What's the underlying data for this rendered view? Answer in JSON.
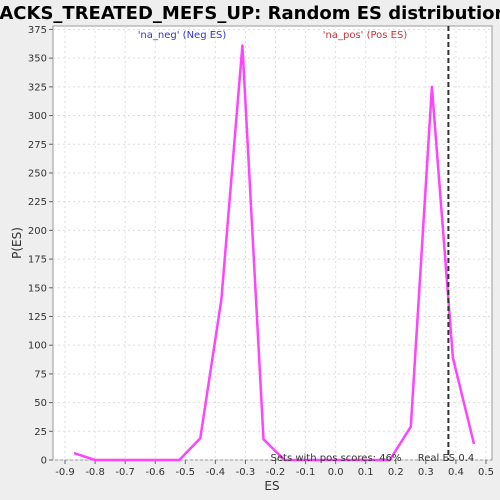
{
  "chart_data": {
    "type": "line",
    "title": "JACKS_TREATED_MEFS_UP: Random ES distribution",
    "xlabel": "ES",
    "ylabel": "P(ES)",
    "xlim": [
      -0.94,
      0.52
    ],
    "ylim": [
      0,
      378
    ],
    "x_ticks": [
      "-0.9",
      "-0.8",
      "-0.7",
      "-0.6",
      "-0.5",
      "-0.4",
      "-0.3",
      "-0.2",
      "-0.1",
      "0.0",
      "0.1",
      "0.2",
      "0.3",
      "0.4",
      "0.5"
    ],
    "y_ticks": [
      "0",
      "25",
      "50",
      "75",
      "100",
      "125",
      "150",
      "175",
      "200",
      "225",
      "250",
      "275",
      "300",
      "325",
      "350",
      "375"
    ],
    "grid": true,
    "series": [
      {
        "color": "#ff44ff",
        "x": [
          -0.87,
          -0.8,
          -0.73,
          -0.66,
          -0.59,
          -0.52,
          -0.45,
          -0.38,
          -0.31,
          -0.24,
          -0.17,
          -0.1,
          -0.03,
          0.04,
          0.11,
          0.18,
          0.25,
          0.32,
          0.39,
          0.46
        ],
        "y": [
          6,
          0,
          0,
          0,
          0,
          0,
          19,
          140,
          361,
          18,
          0,
          0,
          0,
          0,
          0,
          0,
          29,
          325,
          89,
          14
        ]
      }
    ],
    "real_es": 0.375,
    "annotations": {
      "neg_label": "'na_neg' (Neg ES)",
      "pos_label": "'na_pos' (Pos ES)",
      "pos_scores": "Sets with pos scores: 46%",
      "real_es": "Real ES 0.4"
    },
    "colors": {
      "line": "#ff44ff",
      "neg_label": "#3333cc",
      "pos_label": "#cc3333",
      "marker": "#333333"
    }
  }
}
